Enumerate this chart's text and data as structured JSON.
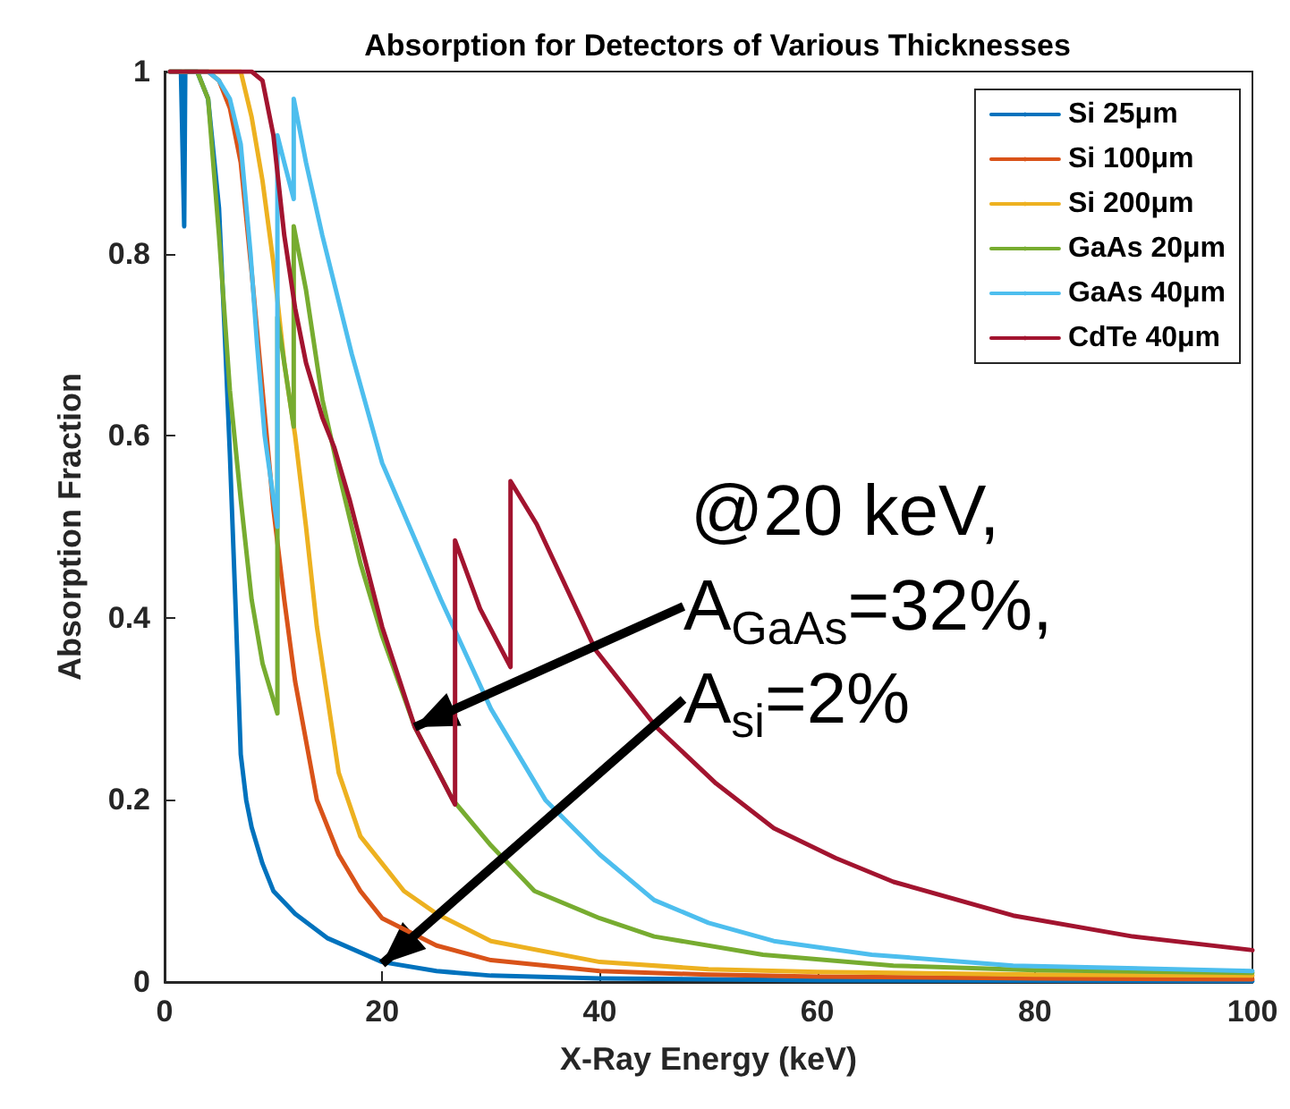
{
  "chart_data": {
    "type": "line",
    "title": "Absorption for Detectors of Various Thicknesses",
    "xlabel": "X-Ray Energy (keV)",
    "ylabel": "Absorption Fraction",
    "xlim": [
      0,
      100
    ],
    "xticks": [
      0,
      20,
      40,
      60,
      80,
      100
    ],
    "ylim": [
      0,
      1
    ],
    "yticks": [
      0,
      0.2,
      0.4,
      0.6,
      0.8,
      1
    ],
    "grid": false,
    "legend": "top right",
    "marker": "none",
    "series": [
      {
        "name": "Si 25μm",
        "color": "#0072bd",
        "x": [
          0.5,
          1,
          1.5,
          1.8,
          1.9,
          2.5,
          3,
          4,
          5,
          5.5,
          6,
          6.5,
          7,
          7.5,
          8,
          9,
          10,
          12,
          15,
          20,
          25,
          30,
          40,
          60,
          100
        ],
        "values": [
          1,
          1,
          1,
          0.83,
          1,
          1,
          1,
          0.97,
          0.85,
          0.72,
          0.58,
          0.42,
          0.25,
          0.2,
          0.17,
          0.13,
          0.1,
          0.075,
          0.048,
          0.022,
          0.012,
          0.007,
          0.004,
          0.002,
          0.001
        ]
      },
      {
        "name": "Si 100μm",
        "color": "#d95319",
        "x": [
          0.5,
          2,
          4,
          5,
          6,
          7,
          8,
          9,
          10,
          11,
          12,
          14,
          16,
          18,
          20,
          25,
          30,
          40,
          50,
          60,
          80,
          100
        ],
        "values": [
          1,
          1,
          1,
          0.99,
          0.96,
          0.9,
          0.78,
          0.65,
          0.52,
          0.42,
          0.33,
          0.2,
          0.14,
          0.1,
          0.07,
          0.04,
          0.024,
          0.012,
          0.008,
          0.006,
          0.004,
          0.003
        ]
      },
      {
        "name": "Si 200μm",
        "color": "#edb120",
        "x": [
          0.5,
          5,
          7,
          8,
          9,
          10,
          11,
          12,
          13,
          14,
          16,
          18,
          20,
          22,
          25,
          30,
          40,
          50,
          60,
          80,
          100
        ],
        "values": [
          1,
          1,
          1,
          0.95,
          0.88,
          0.79,
          0.68,
          0.6,
          0.5,
          0.39,
          0.23,
          0.16,
          0.13,
          0.1,
          0.075,
          0.045,
          0.022,
          0.014,
          0.011,
          0.008,
          0.007
        ]
      },
      {
        "name": "GaAs 20μm",
        "color": "#77ac30",
        "x": [
          0.5,
          2,
          3,
          4,
          5,
          6,
          7,
          8,
          9,
          10.37,
          10.37,
          11,
          11.87,
          11.87,
          13,
          14.5,
          16,
          18,
          20,
          23,
          26.5,
          30,
          34,
          40,
          45,
          55,
          67,
          80,
          100
        ],
        "values": [
          1,
          1,
          1,
          0.97,
          0.82,
          0.65,
          0.53,
          0.42,
          0.35,
          0.295,
          0.73,
          0.68,
          0.61,
          0.83,
          0.76,
          0.64,
          0.56,
          0.46,
          0.38,
          0.28,
          0.2,
          0.15,
          0.1,
          0.07,
          0.05,
          0.03,
          0.018,
          0.013,
          0.01
        ]
      },
      {
        "name": "GaAs 40μm",
        "color": "#4dbeee",
        "x": [
          0.5,
          3,
          4,
          5,
          6,
          7,
          7.9,
          8.5,
          9.2,
          10.37,
          10.37,
          11,
          11.87,
          11.87,
          13,
          14.5,
          17.2,
          20,
          25.4,
          30,
          35,
          40,
          45,
          50,
          56,
          65,
          78,
          100
        ],
        "values": [
          1,
          1,
          1,
          0.99,
          0.97,
          0.92,
          0.8,
          0.7,
          0.6,
          0.5,
          0.93,
          0.9,
          0.86,
          0.97,
          0.9,
          0.82,
          0.69,
          0.57,
          0.42,
          0.3,
          0.2,
          0.14,
          0.09,
          0.065,
          0.045,
          0.03,
          0.018,
          0.012
        ]
      },
      {
        "name": "CdTe 40μm",
        "color": "#a2142f",
        "x": [
          0.5,
          6,
          8,
          9,
          10,
          11,
          12,
          13,
          14.5,
          15.6,
          17,
          20,
          23,
          26.7,
          26.7,
          29,
          31.8,
          31.8,
          34.2,
          39.6,
          45.2,
          50.7,
          56,
          61.7,
          67,
          78,
          89,
          100
        ],
        "values": [
          1,
          1,
          1,
          0.99,
          0.93,
          0.82,
          0.74,
          0.68,
          0.62,
          0.587,
          0.53,
          0.39,
          0.28,
          0.195,
          0.485,
          0.41,
          0.346,
          0.55,
          0.503,
          0.365,
          0.28,
          0.218,
          0.169,
          0.136,
          0.11,
          0.073,
          0.05,
          0.035
        ]
      }
    ],
    "annotations": [
      {
        "text": "A$_{GaAs}$=32%,",
        "x": 23,
        "y": 0.28
      },
      {
        "text": "A$_{si}$=2%",
        "x": 20,
        "y": 0.02
      },
      "@20 keV,"
    ]
  }
}
